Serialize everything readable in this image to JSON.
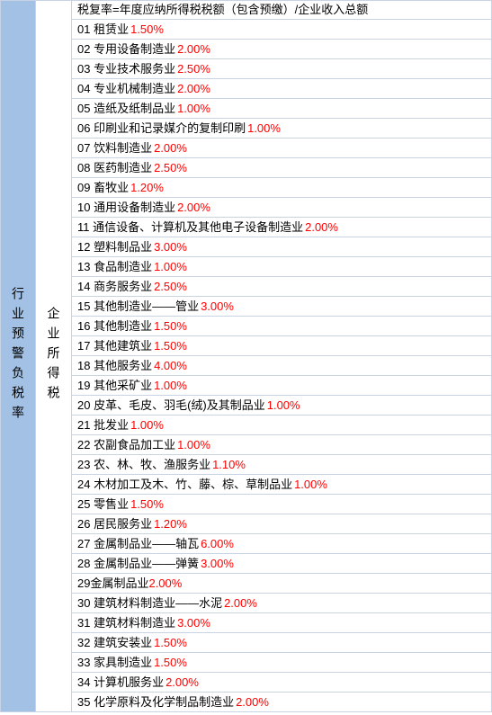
{
  "leftHeader": "行业预警负税率",
  "midHeader": "企业所得税",
  "formula": "税复率=年度应纳所得税税额（包含预缴）/企业收入总额",
  "items": [
    {
      "num": "01",
      "name": "租赁业",
      "rate": "1.50%"
    },
    {
      "num": "02",
      "name": "专用设备制造业",
      "rate": "2.00%"
    },
    {
      "num": "03",
      "name": "专业技术服务业",
      "rate": "2.50%"
    },
    {
      "num": "04",
      "name": "专业机械制造业",
      "rate": "2.00%"
    },
    {
      "num": "05",
      "name": "造纸及纸制品业",
      "rate": "1.00%"
    },
    {
      "num": "06",
      "name": "印刷业和记录媒介的复制印刷",
      "rate": "1.00%"
    },
    {
      "num": "07",
      "name": "饮料制造业",
      "rate": "2.00%"
    },
    {
      "num": "08",
      "name": "医药制造业",
      "rate": "2.50%"
    },
    {
      "num": "09",
      "name": "畜牧业",
      "rate": "1.20%"
    },
    {
      "num": "10",
      "name": "通用设备制造业",
      "rate": "2.00%"
    },
    {
      "num": "11",
      "name": "通信设备、计算机及其他电子设备制造业",
      "rate": "2.00%"
    },
    {
      "num": "12",
      "name": "塑料制品业",
      "rate": "3.00%"
    },
    {
      "num": "13",
      "name": "食品制造业",
      "rate": "1.00%"
    },
    {
      "num": "14",
      "name": "商务服务业",
      "rate": "2.50%"
    },
    {
      "num": "15",
      "name": "其他制造业——管业",
      "rate": "3.00%"
    },
    {
      "num": "16",
      "name": "其他制造业",
      "rate": "1.50%"
    },
    {
      "num": "17",
      "name": "其他建筑业",
      "rate": "1.50%"
    },
    {
      "num": "18",
      "name": "其他服务业",
      "rate": "4.00%"
    },
    {
      "num": "19",
      "name": "其他采矿业",
      "rate": "1.00%"
    },
    {
      "num": "20",
      "name": "皮革、毛皮、羽毛(绒)及其制品业",
      "rate": "1.00%"
    },
    {
      "num": "21",
      "name": "批发业",
      "rate": "1.00%"
    },
    {
      "num": "22",
      "name": "农副食品加工业",
      "rate": "1.00%"
    },
    {
      "num": "23",
      "name": "农、林、牧、渔服务业",
      "rate": "1.10%"
    },
    {
      "num": "24",
      "name": "木材加工及木、竹、藤、棕、草制品业",
      "rate": "1.00%"
    },
    {
      "num": "25",
      "name": "零售业",
      "rate": "1.50%"
    },
    {
      "num": "26",
      "name": "居民服务业",
      "rate": "1.20%"
    },
    {
      "num": "27",
      "name": "金属制品业——轴瓦",
      "rate": "6.00%"
    },
    {
      "num": "28",
      "name": "金属制品业——弹簧",
      "rate": "3.00%"
    },
    {
      "num": "29",
      "name": "金属制品业",
      "rate": "2.00%",
      "nospace": true
    },
    {
      "num": "30",
      "name": "建筑材料制造业——水泥",
      "rate": "2.00%"
    },
    {
      "num": "31",
      "name": "建筑材料制造业",
      "rate": "3.00%"
    },
    {
      "num": "32",
      "name": "建筑安装业",
      "rate": "1.50%"
    },
    {
      "num": "33",
      "name": "家具制造业",
      "rate": "1.50%"
    },
    {
      "num": "34",
      "name": "计算机服务业",
      "rate": "2.00%"
    },
    {
      "num": "35",
      "name": "化学原料及化学制品制造业",
      "rate": "2.00%"
    }
  ],
  "colors": {
    "leftBg": "#a2c1e5",
    "border": "#c8d4e4",
    "rate": "#ff0000",
    "text": "#000000"
  }
}
